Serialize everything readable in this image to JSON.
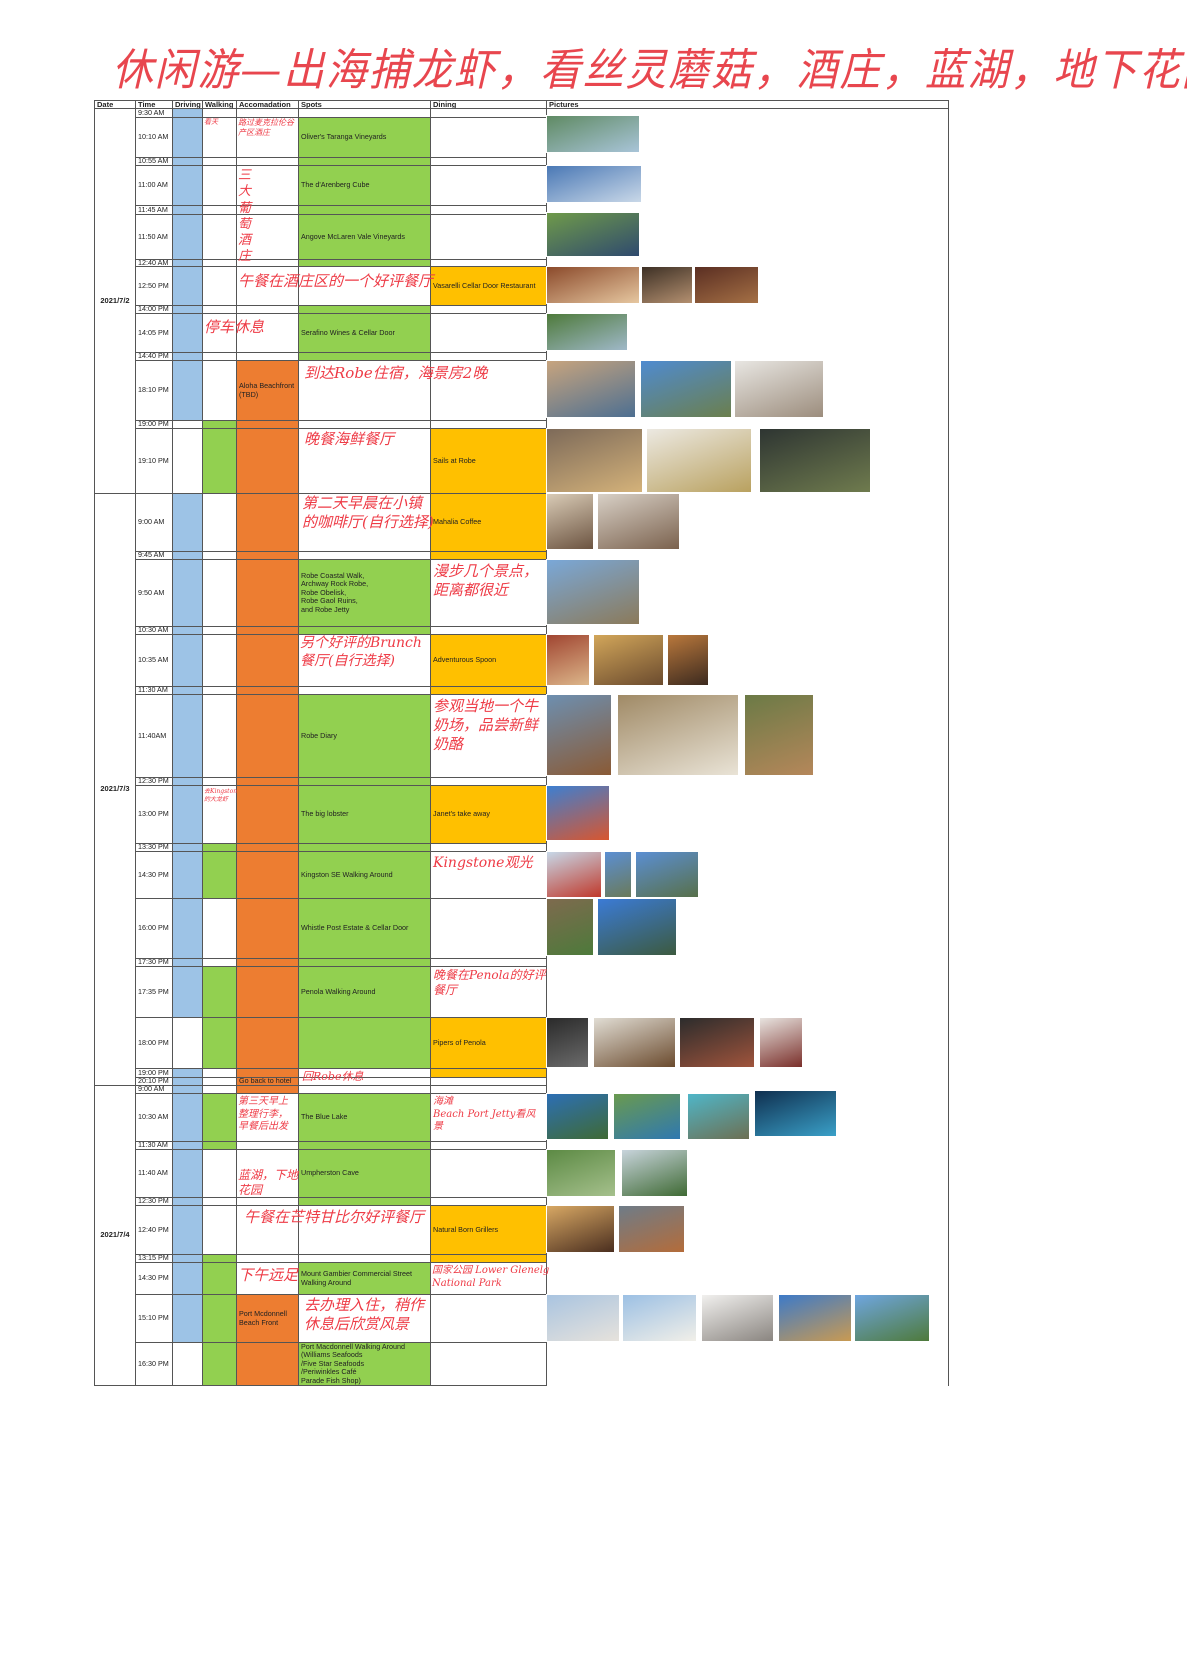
{
  "title": "休闲游—出海捕龙虾，看丝灵蘑菇，酒庄，蓝湖，地下花园",
  "headers": [
    "Date",
    "Time",
    "Driving",
    "Walking",
    "Accomadation",
    "Spots",
    "Dining",
    "Pictures"
  ],
  "colors": {
    "driving": "#9dc3e6",
    "walking": "#92d050",
    "accommodation": "#ed7d31",
    "spots": "#92d050",
    "dining": "#ffc000",
    "handwriting": "#ee3b46"
  },
  "days": [
    {
      "date": "2021/7/2",
      "rows": [
        {
          "time": "9:30 AM",
          "driving": true,
          "walking": false,
          "accom": false,
          "spot": false,
          "dine": false
        },
        {
          "time": "10:10 AM",
          "driving": true,
          "walking": false,
          "accom": false,
          "spot": true,
          "dine": false,
          "spot_text": "Oliver's Taranga Vineyards"
        },
        {
          "time": "10:55 AM",
          "driving": true,
          "walking": false,
          "accom": false,
          "spot": true,
          "dine": false
        },
        {
          "time": "11:00 AM",
          "driving": true,
          "walking": false,
          "accom": false,
          "spot": true,
          "dine": false,
          "spot_text": "The d'Arenberg Cube"
        },
        {
          "time": "11:45 AM",
          "driving": true,
          "walking": false,
          "accom": false,
          "spot": true,
          "dine": false
        },
        {
          "time": "11:50 AM",
          "driving": true,
          "walking": false,
          "accom": false,
          "spot": true,
          "dine": false,
          "spot_text": "Angove McLaren Vale Vineyards"
        },
        {
          "time": "12:40 AM",
          "driving": true,
          "walking": false,
          "accom": false,
          "spot": true,
          "dine": false
        },
        {
          "time": "12:50 PM",
          "driving": true,
          "walking": false,
          "accom": false,
          "spot": false,
          "dine": true,
          "dine_text": "Vasarelli Cellar Door Restaurant"
        },
        {
          "time": "14:00 PM",
          "driving": true,
          "walking": false,
          "accom": false,
          "spot": true,
          "dine": false
        },
        {
          "time": "14:05 PM",
          "driving": true,
          "walking": false,
          "accom": false,
          "spot": true,
          "dine": false,
          "spot_text": "Serafino Wines & Cellar Door"
        },
        {
          "time": "14:40 PM",
          "driving": true,
          "walking": false,
          "accom": false,
          "spot": true,
          "dine": false
        },
        {
          "time": "18:10 PM",
          "driving": true,
          "walking": false,
          "accom": true,
          "spot": false,
          "dine": false,
          "accom_text": "Aloha Beachfront\n(TBD)"
        },
        {
          "time": "19:00 PM",
          "driving": false,
          "walking": true,
          "accom": true,
          "spot": false,
          "dine": false
        },
        {
          "time": "19:10 PM",
          "driving": false,
          "walking": true,
          "accom": true,
          "spot": false,
          "dine": true,
          "dine_text": "Sails at Robe"
        }
      ]
    },
    {
      "date": "2021/7/3",
      "rows": [
        {
          "time": "9:00 AM",
          "driving": true,
          "walking": false,
          "accom": true,
          "spot": false,
          "dine": true,
          "dine_text": "Mahalia Coffee"
        },
        {
          "time": "9:45 AM",
          "driving": true,
          "walking": false,
          "accom": true,
          "spot": false,
          "dine": true
        },
        {
          "time": "9:50 AM",
          "driving": true,
          "walking": false,
          "accom": true,
          "spot": true,
          "dine": false,
          "spot_text": "Robe Coastal Walk,\nArchway Rock Robe,\nRobe Obelisk,\nRobe Gaol Ruins,\nand Robe Jetty"
        },
        {
          "time": "10:30 AM",
          "driving": true,
          "walking": false,
          "accom": true,
          "spot": true,
          "dine": false
        },
        {
          "time": "10:35 AM",
          "driving": true,
          "walking": false,
          "accom": true,
          "spot": false,
          "dine": true,
          "dine_text": "Adventurous Spoon"
        },
        {
          "time": "11:30 AM",
          "driving": true,
          "walking": false,
          "accom": true,
          "spot": false,
          "dine": true
        },
        {
          "time": "11:40AM",
          "driving": true,
          "walking": false,
          "accom": true,
          "spot": true,
          "dine": false,
          "spot_text": "Robe Diary"
        },
        {
          "time": "12:30 PM",
          "driving": true,
          "walking": false,
          "accom": true,
          "spot": true,
          "dine": false
        },
        {
          "time": "13:00 PM",
          "driving": true,
          "walking": false,
          "accom": true,
          "spot": true,
          "dine": true,
          "spot_text": "The big lobster",
          "dine_text": "Janet's take away"
        },
        {
          "time": "13:30 PM",
          "driving": true,
          "walking": true,
          "accom": true,
          "spot": true,
          "dine": false
        },
        {
          "time": "14:30 PM",
          "driving": true,
          "walking": true,
          "accom": true,
          "spot": true,
          "dine": false,
          "spot_text": "Kingston SE Walking Around"
        },
        {
          "time": "16:00 PM",
          "driving": true,
          "walking": false,
          "accom": true,
          "spot": true,
          "dine": false,
          "spot_text": "Whistle Post Estate & Cellar Door"
        },
        {
          "time": "17:30 PM",
          "driving": true,
          "walking": false,
          "accom": true,
          "spot": true,
          "dine": false
        },
        {
          "time": "17:35 PM",
          "driving": true,
          "walking": true,
          "accom": true,
          "spot": true,
          "dine": false,
          "spot_text": "Penola Walking Around"
        },
        {
          "time": "18:00 PM",
          "driving": false,
          "walking": true,
          "accom": true,
          "spot": true,
          "dine": true,
          "dine_text": "Pipers of Penola"
        },
        {
          "time": "19:00 PM",
          "driving": true,
          "walking": false,
          "accom": true,
          "spot": false,
          "dine": true
        },
        {
          "time": "20:10 PM",
          "driving": true,
          "walking": false,
          "accom": true,
          "spot": false,
          "dine": false,
          "accom_text": "Go back to hotel"
        }
      ]
    },
    {
      "date": "2021/7/4",
      "rows": [
        {
          "time": "9:00 AM",
          "driving": true,
          "walking": false,
          "accom": true,
          "spot": false,
          "dine": false
        },
        {
          "time": "10:30 AM",
          "driving": true,
          "walking": true,
          "accom": false,
          "spot": true,
          "dine": false,
          "spot_text": "The Blue Lake"
        },
        {
          "time": "11:30 AM",
          "driving": true,
          "walking": true,
          "accom": false,
          "spot": true,
          "dine": false
        },
        {
          "time": "11:40 AM",
          "driving": true,
          "walking": false,
          "accom": false,
          "spot": true,
          "dine": false,
          "spot_text": "Umpherston Cave"
        },
        {
          "time": "12:30 PM",
          "driving": true,
          "walking": false,
          "accom": false,
          "spot": true,
          "dine": false
        },
        {
          "time": "12:40 PM",
          "driving": true,
          "walking": false,
          "accom": false,
          "spot": false,
          "dine": true,
          "dine_text": "Natural Born Grillers"
        },
        {
          "time": "13:15 PM",
          "driving": true,
          "walking": true,
          "accom": false,
          "spot": false,
          "dine": true
        },
        {
          "time": "14:30 PM",
          "driving": true,
          "walking": true,
          "accom": false,
          "spot": true,
          "dine": false,
          "spot_text": "Mount Gambier Commercial Street\nWalking Around"
        },
        {
          "time": "15:10 PM",
          "driving": true,
          "walking": true,
          "accom": true,
          "spot": false,
          "dine": false,
          "accom_text": "Port Mcdonnell\nBeach Front"
        },
        {
          "time": "16:30 PM",
          "driving": false,
          "walking": true,
          "accom": true,
          "spot": true,
          "dine": false,
          "spot_text": "Port Macdonnell Walking Around\n(Williams Seafoods\n/Five Star Seafoods\n/Periwinkles Café\nParade Fish Shop)"
        }
      ]
    }
  ],
  "notes": [
    "看天",
    "路过麦克拉伦谷\n产区酒庄",
    "三\n大\n葡\n萄\n酒\n庄",
    "午餐在酒庄区的一个好评餐厅",
    "停车休息",
    "到达Robe住宿，海景房2晚",
    "晚餐海鲜餐厅",
    "第二天早晨在小镇\n的咖啡厅(自行选择)",
    "漫步几个景点，\n距离都很近",
    "另个好评的Brunch\n餐厅(自行选择)",
    "参观当地一个牛\n奶场，品尝新鲜\n奶酪",
    "去Kingston\n的大龙虾",
    "Kingstone观光",
    "晚餐在Penola的好评\n餐厅",
    "回Robe休息",
    "第三天早上\n整理行李，\n早餐后出发",
    "海滩\nBeach Port Jetty看风\n景",
    "蓝湖，下地\n花园",
    "午餐在芒特甘比尔好评餐厅",
    "下午远足",
    "国家公园 Lower Glenelg\nNational Park",
    "去办理入住，稍作\n休息后欣赏风景"
  ]
}
